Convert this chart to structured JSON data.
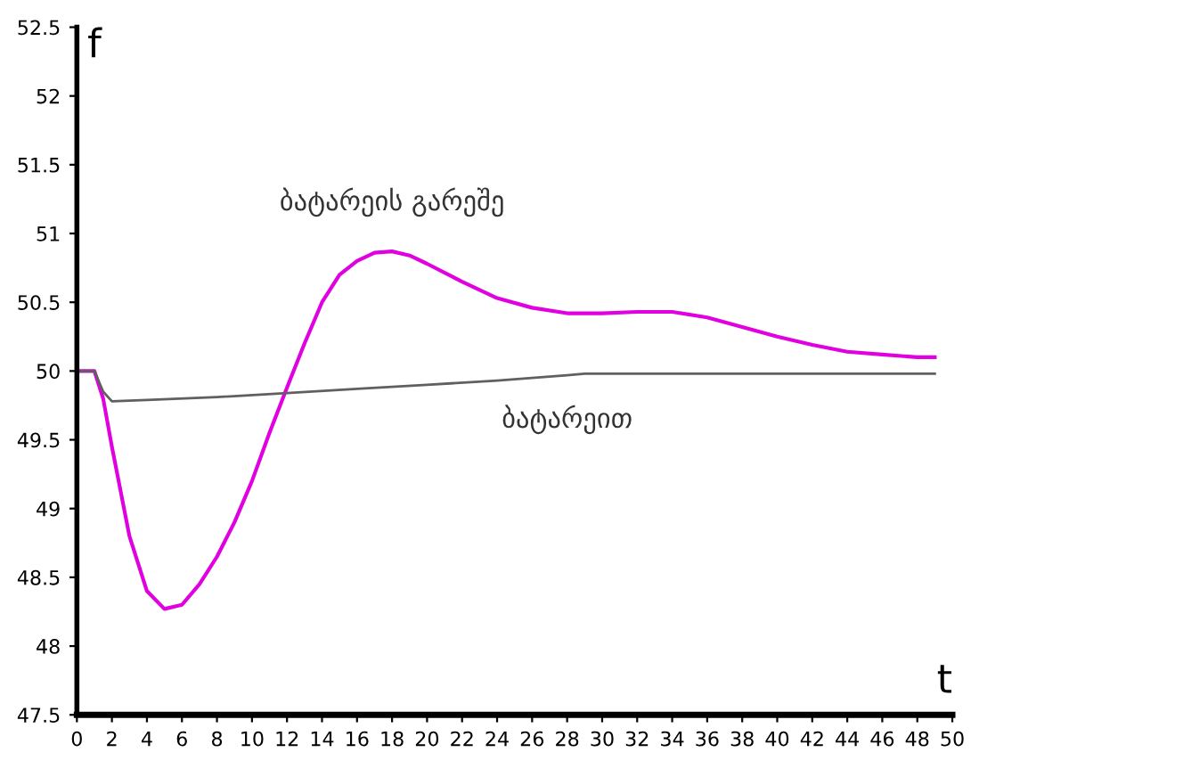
{
  "chart_data": {
    "type": "line",
    "xlabel": "t",
    "ylabel": "f",
    "xlim": [
      0,
      50
    ],
    "ylim": [
      47.5,
      52.5
    ],
    "xticks": [
      0,
      2,
      4,
      6,
      8,
      10,
      12,
      14,
      16,
      18,
      20,
      22,
      24,
      26,
      28,
      30,
      32,
      34,
      36,
      38,
      40,
      42,
      44,
      46,
      48,
      50
    ],
    "yticks": [
      47.5,
      48,
      48.5,
      49,
      49.5,
      50,
      50.5,
      51,
      51.5,
      52,
      52.5
    ],
    "grid": false,
    "legend": false,
    "marker": "none",
    "line_style": "solid",
    "series": [
      {
        "name": "ბატარეის გარეშე",
        "color": "#e000e0",
        "x": [
          0,
          1,
          1.5,
          2,
          3,
          4,
          5,
          6,
          7,
          8,
          9,
          10,
          11,
          12,
          13,
          14,
          15,
          16,
          17,
          18,
          19,
          20,
          22,
          24,
          26,
          28,
          30,
          32,
          34,
          36,
          38,
          40,
          42,
          44,
          46,
          48,
          49
        ],
        "values": [
          50,
          50,
          49.8,
          49.45,
          48.8,
          48.4,
          48.27,
          48.3,
          48.45,
          48.65,
          48.9,
          49.2,
          49.55,
          49.88,
          50.2,
          50.5,
          50.7,
          50.8,
          50.86,
          50.87,
          50.84,
          50.78,
          50.65,
          50.53,
          50.46,
          50.42,
          50.42,
          50.43,
          50.43,
          50.39,
          50.32,
          50.25,
          50.19,
          50.14,
          50.12,
          50.1,
          50.1
        ]
      },
      {
        "name": "ბატარეით",
        "color": "#606060",
        "x": [
          0,
          1,
          1.5,
          2,
          4,
          8,
          12,
          16,
          20,
          24,
          28,
          29,
          35,
          49
        ],
        "values": [
          50,
          50,
          49.85,
          49.78,
          49.79,
          49.81,
          49.84,
          49.87,
          49.9,
          49.93,
          49.97,
          49.98,
          49.98,
          49.98
        ]
      }
    ]
  }
}
